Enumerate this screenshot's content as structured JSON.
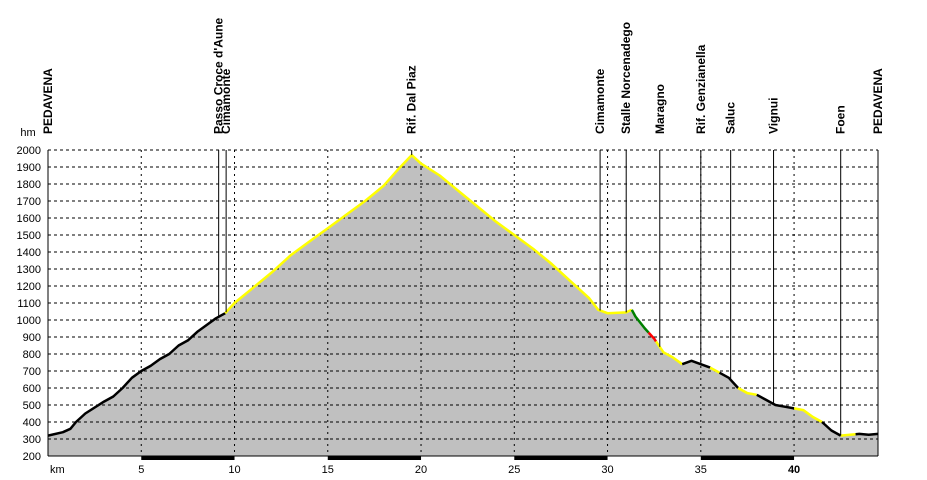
{
  "chart_data": {
    "type": "area",
    "title": "",
    "xlabel": "km",
    "ylabel": "hm",
    "xlim": [
      0,
      44.5
    ],
    "ylim": [
      200,
      2000
    ],
    "x_ticks": [
      5,
      10,
      15,
      20,
      25,
      30,
      35,
      40
    ],
    "x_bold_ticks": [
      40
    ],
    "y_ticks": [
      200,
      300,
      400,
      500,
      600,
      700,
      800,
      900,
      1000,
      1100,
      1200,
      1300,
      1400,
      1500,
      1600,
      1700,
      1800,
      1900,
      2000
    ],
    "grid": true,
    "colors": {
      "fill": "#c0c0c0",
      "asphalt": "#000000",
      "track": "#ffff00",
      "path": "#008000",
      "steep": "#ff0000",
      "grid": "#000000"
    },
    "profile": [
      [
        0,
        320
      ],
      [
        0.8,
        340
      ],
      [
        1.2,
        360
      ],
      [
        1.5,
        400
      ],
      [
        2,
        450
      ],
      [
        3,
        520
      ],
      [
        3.5,
        550
      ],
      [
        4,
        600
      ],
      [
        4.5,
        660
      ],
      [
        5,
        700
      ],
      [
        5.5,
        730
      ],
      [
        6,
        770
      ],
      [
        6.5,
        800
      ],
      [
        7,
        850
      ],
      [
        7.5,
        880
      ],
      [
        8,
        930
      ],
      [
        8.5,
        970
      ],
      [
        9,
        1010
      ],
      [
        9.5,
        1040
      ],
      [
        10,
        1100
      ],
      [
        11,
        1190
      ],
      [
        12,
        1280
      ],
      [
        13,
        1380
      ],
      [
        14,
        1460
      ],
      [
        15,
        1540
      ],
      [
        16,
        1620
      ],
      [
        17,
        1700
      ],
      [
        18,
        1790
      ],
      [
        18.8,
        1890
      ],
      [
        19.5,
        1970
      ],
      [
        20,
        1920
      ],
      [
        21,
        1850
      ],
      [
        22,
        1760
      ],
      [
        23,
        1670
      ],
      [
        24,
        1580
      ],
      [
        25,
        1500
      ],
      [
        26,
        1420
      ],
      [
        27,
        1330
      ],
      [
        28,
        1230
      ],
      [
        29,
        1130
      ],
      [
        29.5,
        1060
      ],
      [
        30,
        1040
      ],
      [
        31,
        1045
      ],
      [
        31.3,
        1060
      ],
      [
        31.5,
        1020
      ],
      [
        32,
        950
      ],
      [
        32.5,
        890
      ],
      [
        33,
        810
      ],
      [
        33.5,
        780
      ],
      [
        34,
        740
      ],
      [
        34.5,
        760
      ],
      [
        35,
        740
      ],
      [
        35.5,
        720
      ],
      [
        36,
        690
      ],
      [
        36.5,
        660
      ],
      [
        37,
        600
      ],
      [
        37.5,
        570
      ],
      [
        38,
        560
      ],
      [
        38.5,
        530
      ],
      [
        39,
        500
      ],
      [
        39.5,
        490
      ],
      [
        40,
        480
      ],
      [
        40.5,
        470
      ],
      [
        41,
        430
      ],
      [
        41.5,
        400
      ],
      [
        42,
        350
      ],
      [
        42.5,
        320
      ],
      [
        43,
        325
      ],
      [
        43.5,
        330
      ],
      [
        44,
        325
      ],
      [
        44.5,
        330
      ]
    ],
    "segments": [
      {
        "surface": "asphalt",
        "from": 0,
        "to": 9.5
      },
      {
        "surface": "track",
        "from": 9.5,
        "to": 31.3
      },
      {
        "surface": "path",
        "from": 31.3,
        "to": 32.2
      },
      {
        "surface": "steep",
        "from": 32.2,
        "to": 32.6
      },
      {
        "surface": "track",
        "from": 32.6,
        "to": 34.0
      },
      {
        "surface": "asphalt",
        "from": 34.0,
        "to": 35.5
      },
      {
        "surface": "track",
        "from": 35.5,
        "to": 36.0
      },
      {
        "surface": "asphalt",
        "from": 36.0,
        "to": 37.0
      },
      {
        "surface": "track",
        "from": 37.0,
        "to": 38.0
      },
      {
        "surface": "asphalt",
        "from": 38.0,
        "to": 40.0
      },
      {
        "surface": "track",
        "from": 40.0,
        "to": 41.5
      },
      {
        "surface": "asphalt",
        "from": 41.5,
        "to": 42.5
      },
      {
        "surface": "track",
        "from": 42.5,
        "to": 43.3
      },
      {
        "surface": "asphalt",
        "from": 43.3,
        "to": 44.5
      }
    ],
    "waypoints": [
      {
        "name": "PEDAVENA",
        "km": 0.0,
        "line": false
      },
      {
        "name": "Passo Croce d'Aune",
        "km": 9.15,
        "line": true
      },
      {
        "name": "Cimamonte",
        "km": 9.55,
        "line": true
      },
      {
        "name": "Rif. Dal Piaz",
        "km": 19.5,
        "line": true
      },
      {
        "name": "Cimamonte",
        "km": 29.6,
        "line": true
      },
      {
        "name": "Stalle Norcenadego",
        "km": 31.0,
        "line": true
      },
      {
        "name": "Maragno",
        "km": 32.8,
        "line": true
      },
      {
        "name": "Rif. Genzianella",
        "km": 35.0,
        "line": true
      },
      {
        "name": "Saluc",
        "km": 36.6,
        "line": true
      },
      {
        "name": "Vignui",
        "km": 38.9,
        "line": true
      },
      {
        "name": "Foen",
        "km": 42.5,
        "line": true
      },
      {
        "name": "PEDAVENA",
        "km": 44.5,
        "line": false
      }
    ]
  }
}
